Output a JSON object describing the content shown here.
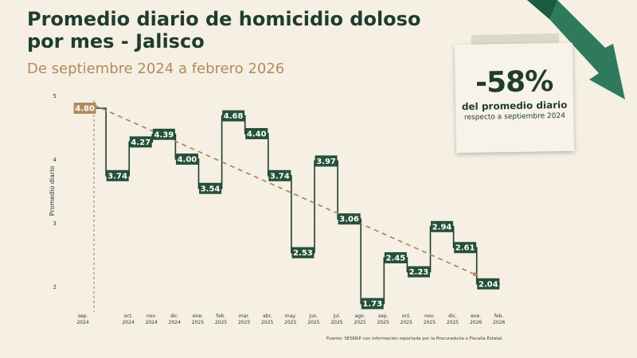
{
  "header": {
    "title": "Promedio diario de homicidio doloso por mes - Jalisco",
    "subtitle": "De septiembre 2024 a febrero 2026"
  },
  "callout": {
    "percent": "-58%",
    "line1": "del promedio diario",
    "line2": "respecto a septiembre 2024"
  },
  "source": "Fuente: SESNSP con información reportada por la Procuraduría o Fiscalía Estatal.",
  "colors": {
    "dark_green": "#1f3d2f",
    "label_green": "#25513a",
    "gold": "#b08c5a",
    "background": "#f6efe3",
    "arrow_green": "#2f7a5c"
  },
  "chart_data": {
    "type": "line",
    "step": true,
    "categories": [
      [
        "sep.",
        "2024"
      ],
      [
        "oct.",
        "2024"
      ],
      [
        "nov.",
        "2024"
      ],
      [
        "dic.",
        "2024"
      ],
      [
        "ene.",
        "2025"
      ],
      [
        "feb.",
        "2025"
      ],
      [
        "mar.",
        "2025"
      ],
      [
        "abr.",
        "2025"
      ],
      [
        "may.",
        "2025"
      ],
      [
        "jun.",
        "2025"
      ],
      [
        "jul.",
        "2025"
      ],
      [
        "ago.",
        "2025"
      ],
      [
        "sep.",
        "2025"
      ],
      [
        "oct.",
        "2025"
      ],
      [
        "nov.",
        "2025"
      ],
      [
        "dic.",
        "2025"
      ],
      [
        "ene.",
        "2026"
      ],
      [
        "feb.",
        "2026"
      ]
    ],
    "values": [
      4.8,
      3.74,
      4.27,
      4.39,
      4.0,
      3.54,
      4.68,
      4.4,
      3.74,
      2.53,
      3.97,
      3.06,
      1.73,
      2.45,
      2.23,
      2.94,
      2.61,
      2.04
    ],
    "value_labels": [
      "4.80",
      "3.74",
      "4.27",
      "4.39",
      "4.00",
      "3.54",
      "4.68",
      "4.40",
      "3.74",
      "2.53",
      "3.97",
      "3.06",
      "1.73",
      "2.45",
      "2.23",
      "2.94",
      "2.61",
      "2.04"
    ],
    "ylabel": "Promedio diario",
    "yticks": [
      2,
      3,
      4,
      5
    ],
    "ylim": [
      1.5,
      5.1
    ],
    "trend": {
      "from": 4.8,
      "to": 2.04,
      "style": "dashed"
    },
    "grid": false,
    "legend": "none"
  }
}
